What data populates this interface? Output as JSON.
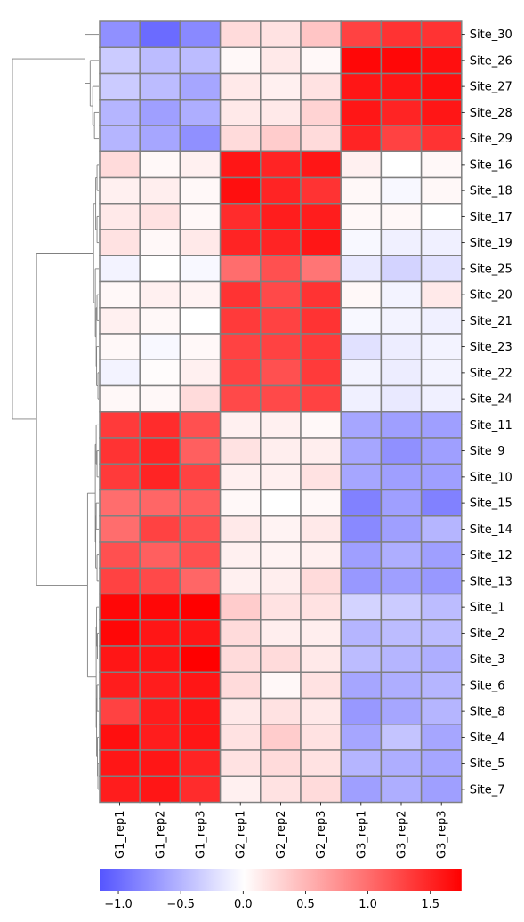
{
  "chart_data": {
    "type": "heatmap",
    "title": "",
    "columns": [
      "G1_rep1",
      "G1_rep2",
      "G1_rep3",
      "G2_rep1",
      "G2_rep2",
      "G2_rep3",
      "G3_rep1",
      "G3_rep2",
      "G3_rep3"
    ],
    "rows": [
      "Site_30",
      "Site_26",
      "Site_27",
      "Site_28",
      "Site_29",
      "Site_16",
      "Site_18",
      "Site_17",
      "Site_19",
      "Site_25",
      "Site_20",
      "Site_21",
      "Site_23",
      "Site_22",
      "Site_24",
      "Site_11",
      "Site_9",
      "Site_10",
      "Site_15",
      "Site_14",
      "Site_12",
      "Site_13",
      "Site_1",
      "Site_2",
      "Site_3",
      "Site_6",
      "Site_8",
      "Site_4",
      "Site_5",
      "Site_7"
    ],
    "values": [
      [
        -0.75,
        -1.0,
        -0.8,
        0.25,
        0.2,
        0.4,
        1.3,
        1.4,
        1.4
      ],
      [
        -0.35,
        -0.45,
        -0.45,
        0.05,
        0.15,
        0.05,
        1.7,
        1.7,
        1.65
      ],
      [
        -0.35,
        -0.45,
        -0.6,
        0.15,
        0.1,
        0.2,
        1.6,
        1.6,
        1.65
      ],
      [
        -0.5,
        -0.65,
        -0.55,
        0.15,
        0.15,
        0.3,
        1.6,
        1.5,
        1.6
      ],
      [
        -0.5,
        -0.6,
        -0.75,
        0.25,
        0.35,
        0.25,
        1.5,
        1.3,
        1.4
      ],
      [
        0.25,
        0.05,
        0.1,
        1.6,
        1.5,
        1.6,
        0.1,
        0.0,
        0.05
      ],
      [
        0.1,
        0.12,
        0.05,
        1.65,
        1.5,
        1.4,
        0.05,
        -0.05,
        0.05
      ],
      [
        0.15,
        0.2,
        0.05,
        1.45,
        1.55,
        1.55,
        0.05,
        0.05,
        0.0
      ],
      [
        0.2,
        0.05,
        0.15,
        1.5,
        1.5,
        1.6,
        -0.05,
        -0.1,
        -0.1
      ],
      [
        -0.08,
        0.0,
        -0.05,
        1.0,
        1.2,
        0.95,
        -0.15,
        -0.3,
        -0.2
      ],
      [
        0.05,
        0.1,
        0.08,
        1.4,
        1.25,
        1.4,
        0.05,
        -0.08,
        0.15
      ],
      [
        0.1,
        0.05,
        0.0,
        1.35,
        1.3,
        1.4,
        -0.05,
        -0.08,
        -0.1
      ],
      [
        0.05,
        -0.05,
        0.05,
        1.3,
        1.3,
        1.35,
        -0.2,
        -0.12,
        -0.08
      ],
      [
        -0.08,
        0.02,
        0.1,
        1.3,
        1.2,
        1.35,
        -0.08,
        -0.12,
        -0.08
      ],
      [
        0.05,
        0.05,
        0.25,
        1.25,
        1.25,
        1.3,
        -0.1,
        -0.15,
        -0.1
      ],
      [
        1.35,
        1.45,
        1.2,
        0.1,
        0.1,
        0.05,
        -0.6,
        -0.65,
        -0.65
      ],
      [
        1.4,
        1.5,
        1.1,
        0.2,
        0.12,
        0.12,
        -0.6,
        -0.75,
        -0.65
      ],
      [
        1.35,
        1.5,
        1.3,
        0.1,
        0.1,
        0.2,
        -0.6,
        -0.65,
        -0.65
      ],
      [
        1.0,
        1.05,
        1.1,
        0.05,
        0.0,
        0.05,
        -0.85,
        -0.65,
        -0.85
      ],
      [
        1.0,
        1.3,
        1.2,
        0.15,
        0.08,
        0.15,
        -0.8,
        -0.65,
        -0.5
      ],
      [
        1.2,
        1.1,
        1.2,
        0.1,
        0.08,
        0.1,
        -0.65,
        -0.55,
        -0.65
      ],
      [
        1.3,
        1.25,
        1.05,
        0.1,
        0.12,
        0.25,
        -0.7,
        -0.65,
        -0.7
      ],
      [
        1.7,
        1.7,
        1.75,
        0.35,
        0.2,
        0.2,
        -0.3,
        -0.35,
        -0.45
      ],
      [
        1.7,
        1.6,
        1.6,
        0.25,
        0.12,
        0.12,
        -0.5,
        -0.45,
        -0.45
      ],
      [
        1.6,
        1.6,
        1.75,
        0.25,
        0.25,
        0.15,
        -0.45,
        -0.5,
        -0.55
      ],
      [
        1.55,
        1.55,
        1.6,
        0.25,
        0.05,
        0.2,
        -0.6,
        -0.55,
        -0.5
      ],
      [
        1.3,
        1.55,
        1.6,
        0.15,
        0.2,
        0.15,
        -0.7,
        -0.6,
        -0.5
      ],
      [
        1.65,
        1.55,
        1.6,
        0.2,
        0.35,
        0.2,
        -0.6,
        -0.4,
        -0.6
      ],
      [
        1.6,
        1.6,
        1.5,
        0.2,
        0.25,
        0.2,
        -0.5,
        -0.55,
        -0.6
      ],
      [
        1.55,
        1.6,
        1.45,
        0.1,
        0.2,
        0.25,
        -0.65,
        -0.55,
        -0.65
      ]
    ],
    "colorbar": {
      "vmin": -1.15,
      "vmax": 1.75,
      "ticks": [
        -1.0,
        -0.5,
        0.0,
        0.5,
        1.0,
        1.5
      ],
      "tick_labels": [
        "−1.0",
        "−0.5",
        "0.0",
        "0.5",
        "1.0",
        "1.5"
      ],
      "colors": {
        "low": "#5555ff",
        "mid": "#ffffff",
        "high": "#ff0000"
      }
    },
    "cell_border_color": "#808080",
    "dendrogram_line_color": "#808080",
    "row_dendrogram": true,
    "column_dendrogram": false,
    "row_labels_side": "right",
    "column_labels_rotation": "vertical",
    "colorbar_orientation": "horizontal",
    "colorbar_position": "bottom"
  }
}
